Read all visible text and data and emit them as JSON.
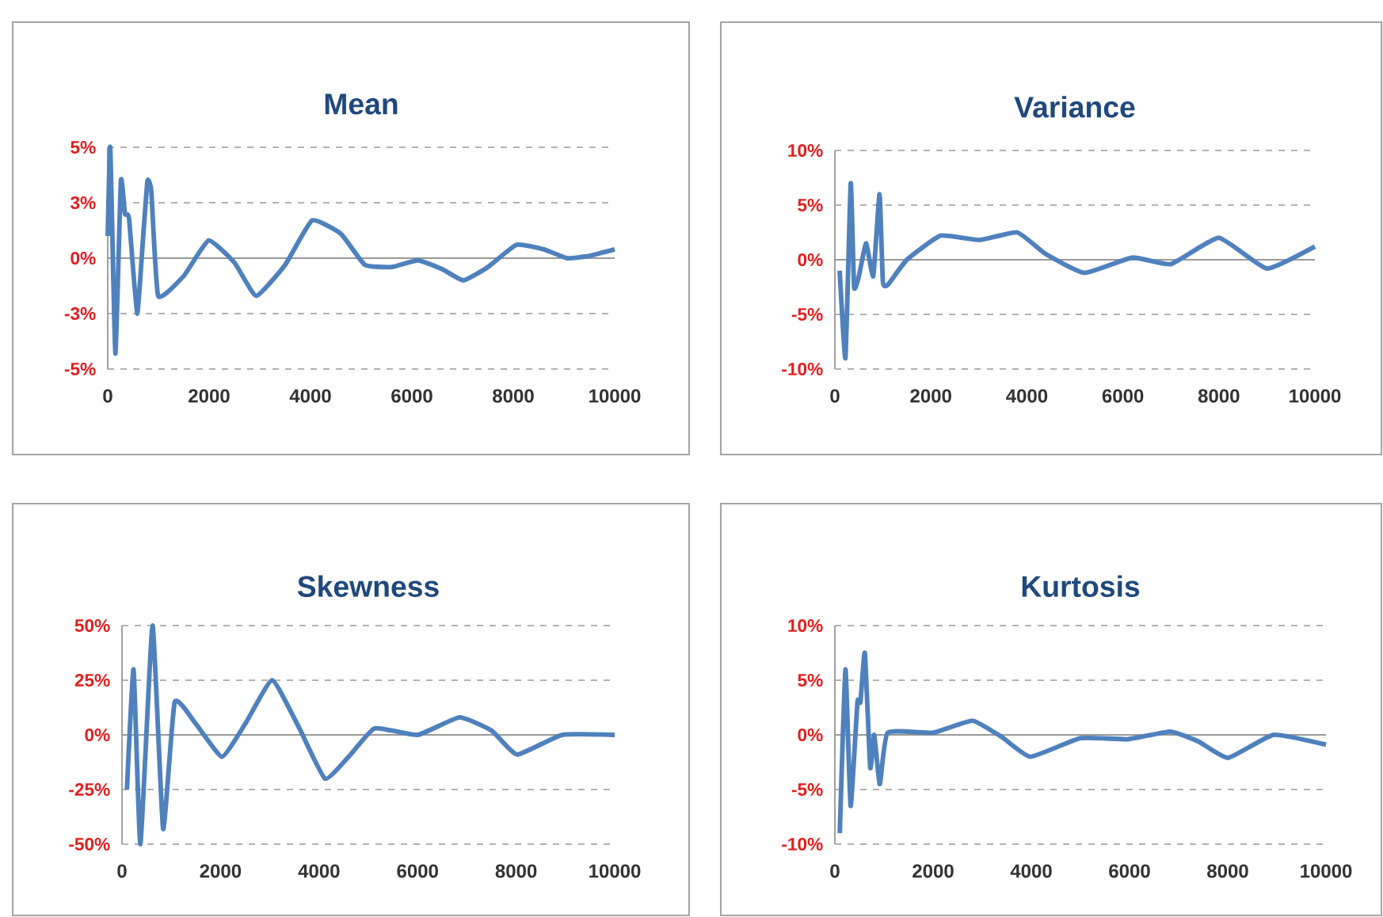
{
  "chart_data": [
    {
      "type": "line",
      "title": "Mean",
      "color": "#4f81bd",
      "grid": "y",
      "marker": "none",
      "line_style": "solid",
      "x": [
        0,
        50,
        150,
        260,
        340,
        420,
        580,
        700,
        785,
        860,
        995,
        1500,
        1990,
        2500,
        2930,
        3500,
        4030,
        4600,
        5070,
        5600,
        6120,
        6600,
        7015,
        7500,
        8060,
        8600,
        9060,
        9500,
        10000
      ],
      "values": [
        1,
        5,
        -4.3,
        3.5,
        2,
        1.8,
        -2.5,
        1,
        3.5,
        3,
        -1.7,
        -0.8,
        0.8,
        -0.2,
        -1.7,
        -0.3,
        1.7,
        1.1,
        -0.3,
        -0.4,
        -0.1,
        -0.5,
        -1.0,
        -0.4,
        0.6,
        0.4,
        0,
        0.1,
        0.4
      ],
      "xlim": [
        0,
        10000
      ],
      "xticks": [
        0,
        2000,
        4000,
        6000,
        8000,
        10000
      ],
      "ylim": [
        -5,
        5
      ],
      "yticks": [
        {
          "value": -5,
          "label": "-5%"
        },
        {
          "value": -2.5,
          "label": "-3%"
        },
        {
          "value": 0,
          "label": "0%"
        },
        {
          "value": 2.5,
          "label": "3%"
        },
        {
          "value": 5,
          "label": "5%"
        }
      ]
    },
    {
      "type": "line",
      "title": "Variance",
      "color": "#4f81bd",
      "grid": "y",
      "marker": "none",
      "line_style": "solid",
      "x": [
        100,
        220,
        330,
        400,
        500,
        650,
        800,
        930,
        1000,
        1100,
        1500,
        2200,
        3000,
        3800,
        4400,
        5200,
        6200,
        7000,
        8000,
        9000,
        10000
      ],
      "values": [
        -1,
        -9,
        7,
        -2.5,
        -1.5,
        1.5,
        -1.5,
        6,
        -2,
        -2.3,
        0,
        2.2,
        1.8,
        2.5,
        0.5,
        -1.2,
        0.2,
        -0.4,
        2,
        -0.8,
        1.2
      ],
      "xlim": [
        0,
        10000
      ],
      "xticks": [
        0,
        2000,
        4000,
        6000,
        8000,
        10000
      ],
      "ylim": [
        -10,
        10
      ],
      "yticks": [
        {
          "value": -10,
          "label": "-10%"
        },
        {
          "value": -5,
          "label": "-5%"
        },
        {
          "value": 0,
          "label": "0%"
        },
        {
          "value": 5,
          "label": "5%"
        },
        {
          "value": 10,
          "label": "10%"
        }
      ]
    },
    {
      "type": "line",
      "title": "Skewness",
      "color": "#4f81bd",
      "grid": "y",
      "marker": "none",
      "line_style": "solid",
      "x": [
        100,
        235,
        375,
        620,
        835,
        1070,
        1500,
        2030,
        2500,
        3050,
        3600,
        4120,
        4600,
        5130,
        6000,
        6850,
        7500,
        8020,
        8930,
        10000
      ],
      "values": [
        -25,
        30,
        -50,
        50,
        -43,
        15,
        5,
        -10,
        5,
        25,
        3,
        -20,
        -10,
        3,
        0,
        8,
        2,
        -9,
        0,
        0
      ],
      "xlim": [
        0,
        10000
      ],
      "xticks": [
        0,
        2000,
        4000,
        6000,
        8000,
        10000
      ],
      "ylim": [
        -50,
        50
      ],
      "yticks": [
        {
          "value": -50,
          "label": "-50%"
        },
        {
          "value": -25,
          "label": "-25%"
        },
        {
          "value": 0,
          "label": "0%"
        },
        {
          "value": 25,
          "label": "25%"
        },
        {
          "value": 50,
          "label": "50%"
        }
      ]
    },
    {
      "type": "line",
      "title": "Kurtosis",
      "color": "#4f81bd",
      "grid": "y",
      "marker": "none",
      "line_style": "solid",
      "x": [
        100,
        215,
        320,
        460,
        520,
        610,
        720,
        800,
        915,
        1075,
        2000,
        2800,
        3400,
        3980,
        5000,
        5970,
        6830,
        7400,
        8010,
        8930,
        10000
      ],
      "values": [
        -9,
        6,
        -6.5,
        3,
        3,
        7.5,
        -3,
        0,
        -4.5,
        0.2,
        0.2,
        1.3,
        -0.2,
        -2,
        -0.3,
        -0.4,
        0.3,
        -0.6,
        -2.1,
        0,
        -0.9
      ],
      "xlim": [
        0,
        10000
      ],
      "xticks": [
        0,
        2000,
        4000,
        6000,
        8000,
        10000
      ],
      "ylim": [
        -10,
        10
      ],
      "yticks": [
        {
          "value": -10,
          "label": "-10%"
        },
        {
          "value": -5,
          "label": "-5%"
        },
        {
          "value": 0,
          "label": "0%"
        },
        {
          "value": 5,
          "label": "5%"
        },
        {
          "value": 10,
          "label": "10%"
        }
      ]
    }
  ]
}
